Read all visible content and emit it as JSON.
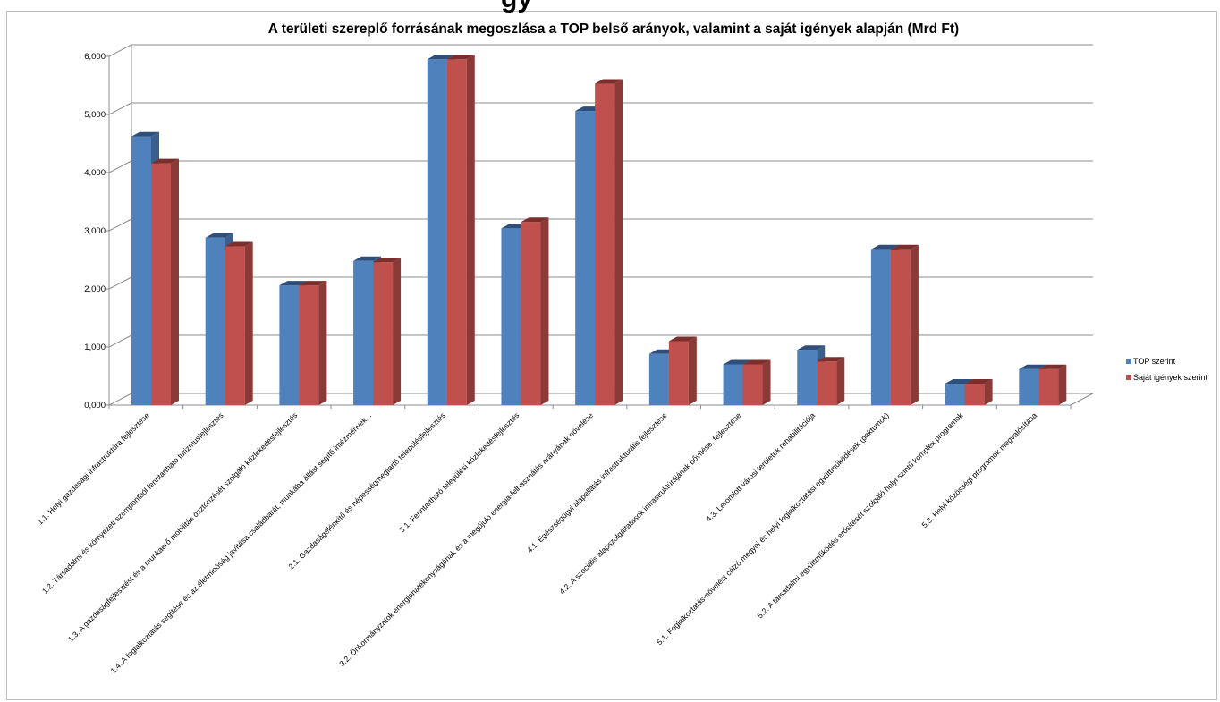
{
  "page_heading": "gy",
  "chart_data": {
    "type": "bar",
    "title": "A területi szereplő forrásának megoszlása a TOP belső arányok, valamint a saját igények alapján (Mrd Ft)",
    "xlabel": "",
    "ylabel": "",
    "ylim": [
      0,
      6
    ],
    "yticks": [
      "0,000",
      "1,000",
      "2,000",
      "3,000",
      "4,000",
      "5,000",
      "6,000"
    ],
    "grid": true,
    "three_d": true,
    "legend_position": "right",
    "categories": [
      "1.1. Helyi gazdasági infrastruktúra fejlesztése",
      "1.2. Társadalmi és környezeti szempontból fenntartható turizmusfejlesztés",
      "1.3. A gazdaságfejlesztést és a munkaerő mobilitás ösztönzését szolgáló közlekedésfejlesztés",
      "1.4. A foglalkoztatás segítése és az életminőség javítása családbarát, munkába állást segítő intézmények...",
      "2.1. Gazdaságélénkítő és népességmegtartó településfejlesztés",
      "3.1. Fenntartható települési közlekedésfejlesztés",
      "3.2. Önkormányzatok energiahatékonyságának és a megújuló energia-felhasználás arányának növelése",
      "4.1. Egészségügyi alapellátás infrastrukturális fejlesztése",
      "4.2. A szociális alapszolgáltatások infrastruktúrájának bővítése, fejlesztése",
      "4.3. Leromlott városi területek rehabilitációja",
      "5.1. Foglalkoztatás-növelést célzó megyei és helyi foglalkoztatási együttműködések (paktumok)",
      "5.2. A társadalmi együttműködés erősítését szolgáló helyi szintű komplex programok",
      "5.3. Helyi közösségi programok megvalósítása"
    ],
    "series": [
      {
        "name": "TOP szerint",
        "color": "#4f81bd",
        "side_color": "#3a5f8c",
        "top_color": "#2f4f7a",
        "values": [
          4.62,
          2.88,
          2.06,
          2.48,
          5.95,
          3.04,
          5.06,
          0.88,
          0.7,
          0.95,
          2.68,
          0.37,
          0.62
        ]
      },
      {
        "name": "Saját igények szerint",
        "color": "#c0504d",
        "side_color": "#8c3a38",
        "top_color": "#7a2f2d",
        "values": [
          4.16,
          2.73,
          2.06,
          2.46,
          5.95,
          3.15,
          5.53,
          1.1,
          0.7,
          0.75,
          2.68,
          0.37,
          0.62
        ]
      }
    ]
  }
}
